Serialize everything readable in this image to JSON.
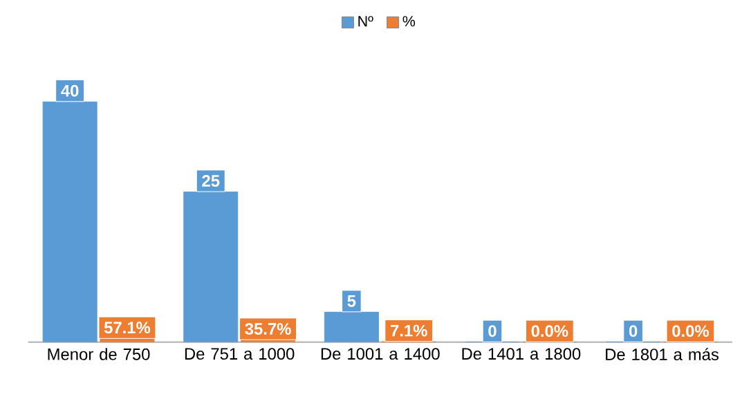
{
  "chart_data": {
    "type": "bar",
    "categories": [
      "Menor de 750",
      "De 751 a 1000",
      "De 1001 a 1400",
      "De 1401 a 1800",
      "De 1801 a más"
    ],
    "series": [
      {
        "name": "Nº",
        "color": "#5b9bd5",
        "values": [
          40,
          25,
          5,
          0,
          0
        ],
        "value_labels": [
          "40",
          "25",
          "5",
          "0",
          "0"
        ]
      },
      {
        "name": "%",
        "color": "#ed7d31",
        "values": [
          0.571,
          0.357,
          0.071,
          0.0,
          0.0
        ],
        "value_labels": [
          "57.1%",
          "35.7%",
          "7.1%",
          "0.0%",
          "0.0%"
        ]
      }
    ],
    "legend": "top"
  }
}
